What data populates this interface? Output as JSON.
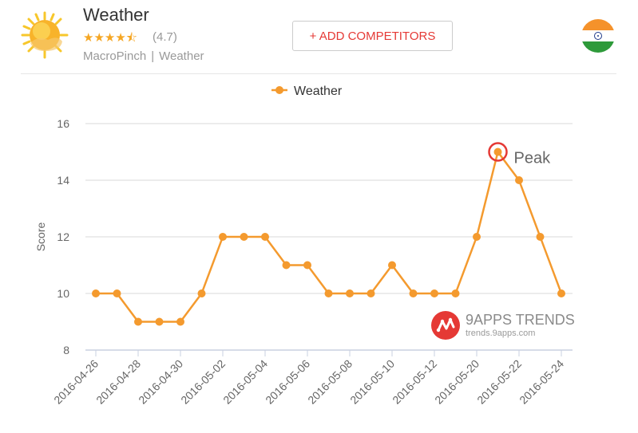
{
  "app": {
    "title": "Weather",
    "stars": "★★★★⯪",
    "rating": "(4.7)",
    "developer": "MacroPinch",
    "separator": "|",
    "category": "Weather",
    "add_competitors_label": "+ ADD COMPETITORS",
    "icon_name": "sun-icon",
    "flag_name": "india-flag-icon"
  },
  "watermark": {
    "title": "9APPS TRENDS",
    "url": "trends.9apps.com"
  },
  "colors": {
    "series": "#f49a2e",
    "peak_ring": "#e53935",
    "grid": "#d9d9d9",
    "axis_text": "#666666"
  },
  "chart_data": {
    "type": "line",
    "legend_position": "top-center",
    "ylabel": "Score",
    "xlabel": "",
    "ylim": [
      8,
      16
    ],
    "yticks": [
      8,
      10,
      12,
      14,
      16
    ],
    "grid": true,
    "x": [
      "2016-04-26",
      "2016-04-27",
      "2016-04-28",
      "2016-04-29",
      "2016-04-30",
      "2016-05-01",
      "2016-05-02",
      "2016-05-03",
      "2016-05-04",
      "2016-05-05",
      "2016-05-06",
      "2016-05-07",
      "2016-05-08",
      "2016-05-09",
      "2016-05-10",
      "2016-05-11",
      "2016-05-12",
      "2016-05-13",
      "2016-05-20",
      "2016-05-21",
      "2016-05-22",
      "2016-05-23",
      "2016-05-24"
    ],
    "xtick_labels": [
      "2016-04-26",
      "2016-04-28",
      "2016-04-30",
      "2016-05-02",
      "2016-05-04",
      "2016-05-06",
      "2016-05-08",
      "2016-05-10",
      "2016-05-12",
      "2016-05-20",
      "2016-05-22",
      "2016-05-24"
    ],
    "series": [
      {
        "name": "Weather",
        "values": [
          10,
          10,
          9,
          9,
          9,
          10,
          12,
          12,
          12,
          11,
          11,
          10,
          10,
          10,
          11,
          10,
          10,
          10,
          12,
          15,
          14,
          12,
          10
        ]
      }
    ],
    "annotations": [
      {
        "label": "Peak",
        "x": "2016-05-21",
        "y": 15
      }
    ]
  }
}
